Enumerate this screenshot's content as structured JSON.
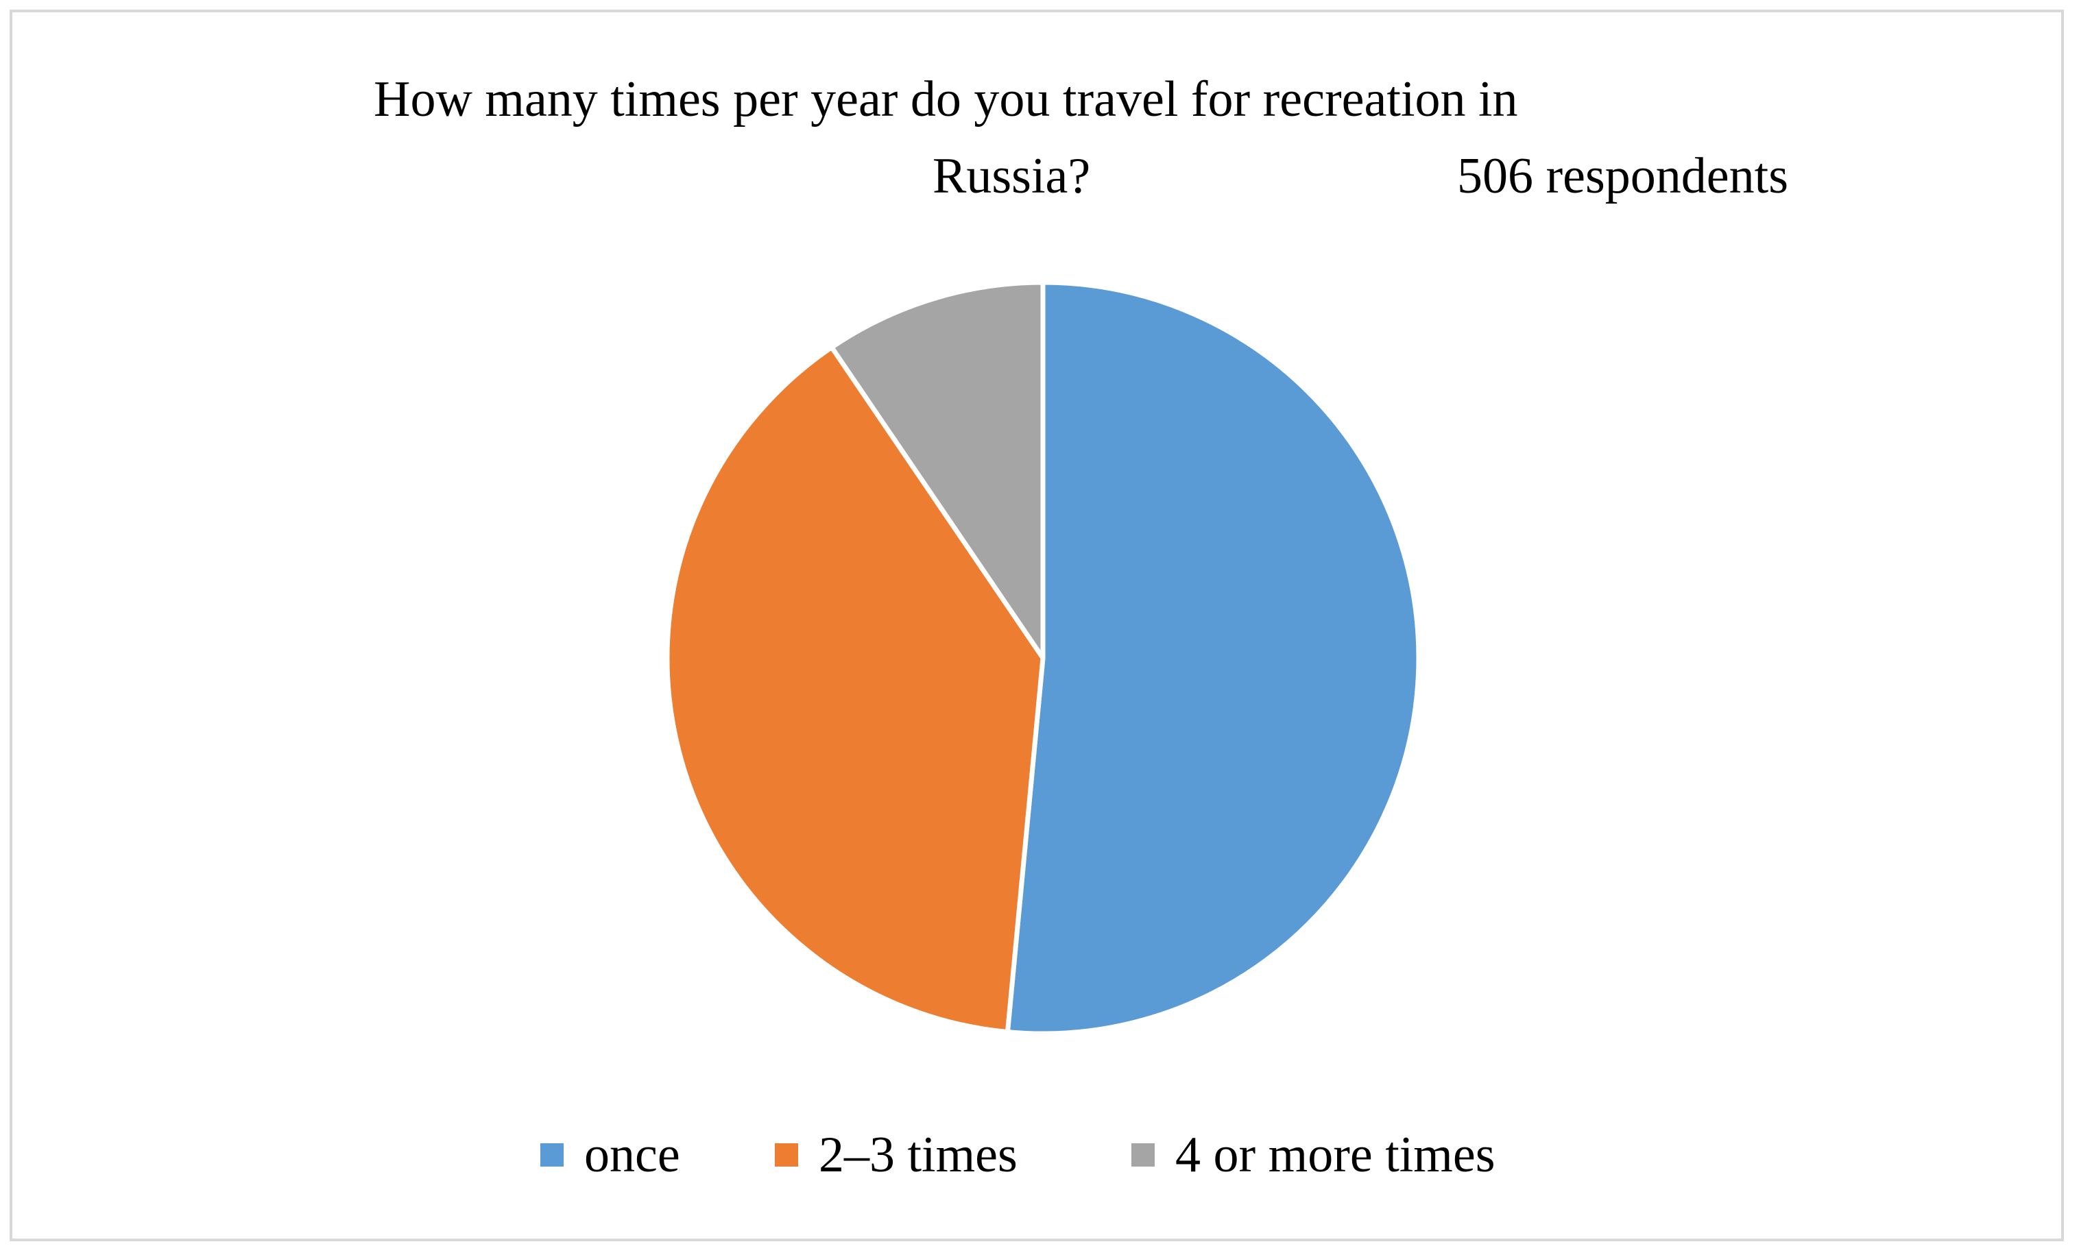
{
  "chart_data": {
    "type": "pie",
    "title": "How many times per year do you travel for recreation in Russia?",
    "title_lines": [
      "How many times per year do you travel for recreation in",
      "Russia?"
    ],
    "subtitle": "506 respondents",
    "categories": [
      "once",
      "2–3 times",
      "4 or more times"
    ],
    "values": [
      51.5,
      39.0,
      9.5
    ],
    "value_unit": "percent (estimated)",
    "colors": [
      "#5b9bd5",
      "#ed7d31",
      "#a5a5a5"
    ],
    "start_angle_deg": 0,
    "direction": "clockwise",
    "legend": "bottom",
    "slice_border_color": "#ffffff"
  }
}
